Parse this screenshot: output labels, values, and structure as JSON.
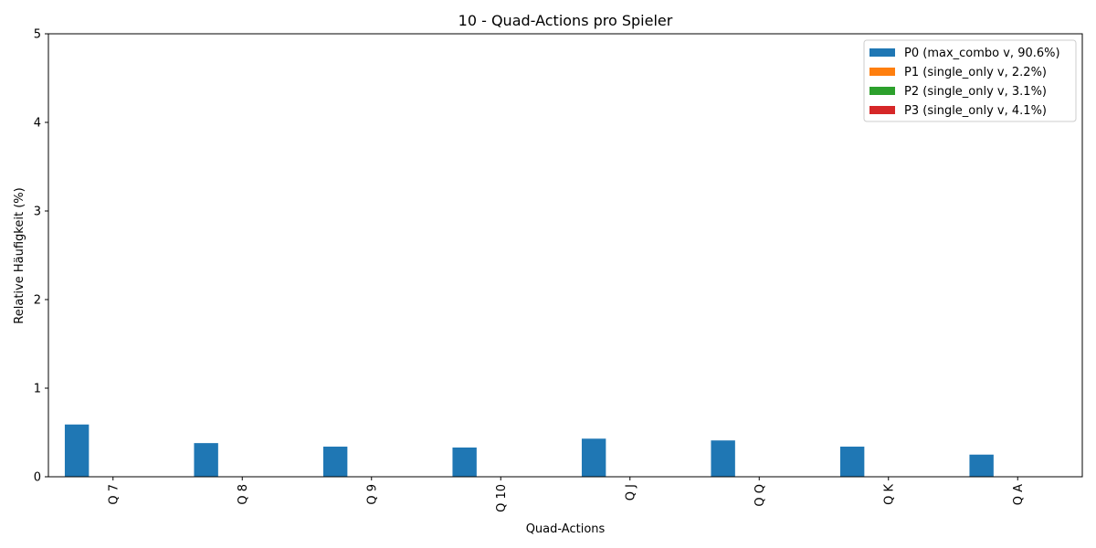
{
  "chart_data": {
    "type": "bar",
    "title": "10 - Quad-Actions pro Spieler",
    "xlabel": "Quad-Actions",
    "ylabel": "Relative Häufigkeit (%)",
    "ylim": [
      0,
      5
    ],
    "yticks": [
      "0",
      "1",
      "2",
      "3",
      "4",
      "5"
    ],
    "categories": [
      "Q 7",
      "Q 8",
      "Q 9",
      "Q 10",
      "Q J",
      "Q Q",
      "Q K",
      "Q A"
    ],
    "grid": false,
    "legend_position": "top-right",
    "series": [
      {
        "name": "P0 (max_combo v, 90.6%)",
        "color": "#1f77b4",
        "values": [
          0.59,
          0.38,
          0.34,
          0.33,
          0.43,
          0.41,
          0.34,
          0.25
        ]
      },
      {
        "name": "P1 (single_only v, 2.2%)",
        "color": "#ff7f0e",
        "values": [
          0,
          0,
          0,
          0,
          0,
          0,
          0,
          0
        ]
      },
      {
        "name": "P2 (single_only v, 3.1%)",
        "color": "#2ca02c",
        "values": [
          0,
          0,
          0,
          0,
          0,
          0,
          0,
          0
        ]
      },
      {
        "name": "P3 (single_only v, 4.1%)",
        "color": "#d62728",
        "values": [
          0,
          0,
          0,
          0,
          0,
          0,
          0,
          0
        ]
      }
    ]
  }
}
